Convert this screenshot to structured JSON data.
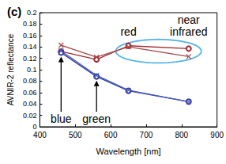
{
  "chart_data": {
    "type": "line",
    "title": "(c)",
    "x_label": "Wavelength [nm]",
    "y_label": "AVNIR-2 reflectance",
    "x": [
      460,
      560,
      650,
      820
    ],
    "series": [
      {
        "color": "#a3282e",
        "marker": "circle",
        "values": [
          0.132,
          0.118,
          0.142,
          0.137
        ]
      },
      {
        "color": "#a04848",
        "marker": "x",
        "values": [
          0.143,
          0.122,
          0.14,
          0.123
        ]
      },
      {
        "color": "#2e3a9a",
        "marker": "circle",
        "values": [
          0.13,
          0.088,
          0.063,
          0.044
        ]
      },
      {
        "color": "#4a5cc0",
        "marker": "x",
        "values": [
          0.133,
          0.09,
          0.064,
          0.044
        ]
      }
    ],
    "xlim": [
      400,
      900
    ],
    "xticks": [
      400,
      500,
      600,
      700,
      800,
      900
    ],
    "ylim": [
      0,
      0.2
    ],
    "yticks": [
      0,
      0.02,
      0.04,
      0.06,
      0.08,
      0.1,
      0.12,
      0.14,
      0.16,
      0.18,
      0.2
    ],
    "grid": false,
    "arrow_labels": [
      {
        "text": "blue",
        "x": 460
      },
      {
        "text": "green",
        "x": 560
      }
    ],
    "circled_labels": [
      {
        "text": "red",
        "x": 650
      },
      {
        "text": "near\ninfrared",
        "x": 820
      }
    ]
  }
}
